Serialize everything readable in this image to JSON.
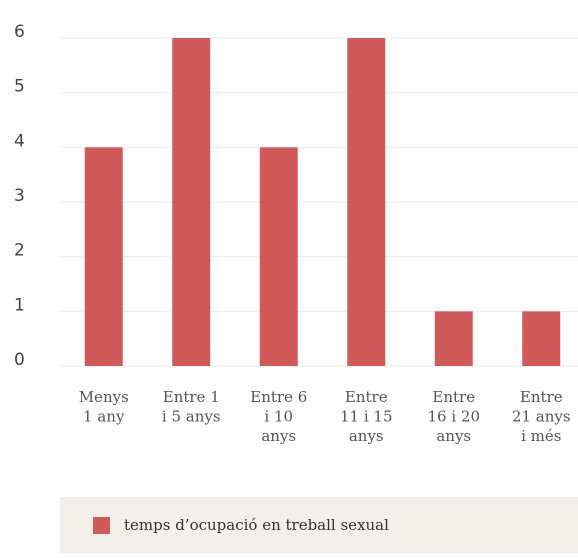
{
  "chart_data": {
    "type": "bar",
    "categories": [
      [
        "Menys",
        "1 any"
      ],
      [
        "Entre 1",
        "i 5 anys"
      ],
      [
        "Entre 6",
        "i 10",
        "anys"
      ],
      [
        "Entre",
        "11 i 15",
        "anys"
      ],
      [
        "Entre",
        "16 i 20",
        "anys"
      ],
      [
        "Entre",
        "21 anys",
        "i més"
      ]
    ],
    "series": [
      {
        "name": "temps d’ocupació en treball sexual",
        "color": "#d05a5a",
        "values": [
          4,
          6,
          4,
          6,
          1,
          1
        ]
      }
    ],
    "ylim": [
      0,
      6
    ],
    "yticks": [
      0,
      1,
      2,
      3,
      4,
      5,
      6
    ],
    "grid": true,
    "legend": "bottom"
  }
}
